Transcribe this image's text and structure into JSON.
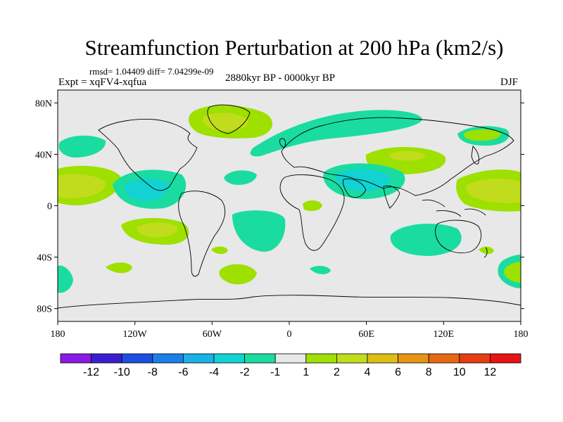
{
  "header": {
    "title": "Streamfunction Perturbation at 200 hPa (km2/s)",
    "stats": "rmsd= 1.04409 diff= 7.04299e-09",
    "experiment": "Expt = xqFV4-xqfua",
    "period": "2880kyr BP - 0000kyr BP",
    "season": "DJF"
  },
  "map": {
    "lat_labels": [
      "80N",
      "40N",
      "0",
      "40S",
      "80S"
    ],
    "lat_values": [
      80,
      40,
      0,
      -40,
      -80
    ],
    "lon_labels": [
      "180",
      "120W",
      "60W",
      "0",
      "60E",
      "120E",
      "180"
    ],
    "lon_values": [
      -180,
      -120,
      -60,
      0,
      60,
      120,
      180
    ],
    "lat_range": [
      -90,
      90
    ],
    "lon_range": [
      -180,
      180
    ]
  },
  "colorbar": {
    "labels": [
      "-12",
      "-10",
      "-8",
      "-6",
      "-4",
      "-2",
      "-1",
      "1",
      "2",
      "4",
      "6",
      "8",
      "10",
      "12"
    ],
    "colors": [
      "#8a1be6",
      "#3c1ed2",
      "#1c4fe0",
      "#1a7fe6",
      "#19b1e6",
      "#12d2d2",
      "#1adca0",
      "#e8e8e8",
      "#9ee000",
      "#c0dc1c",
      "#dcbe14",
      "#e69414",
      "#e66814",
      "#e63c14",
      "#e61414"
    ]
  },
  "palette": {
    "land_line": "#000000",
    "background": "#e8e8e8"
  }
}
